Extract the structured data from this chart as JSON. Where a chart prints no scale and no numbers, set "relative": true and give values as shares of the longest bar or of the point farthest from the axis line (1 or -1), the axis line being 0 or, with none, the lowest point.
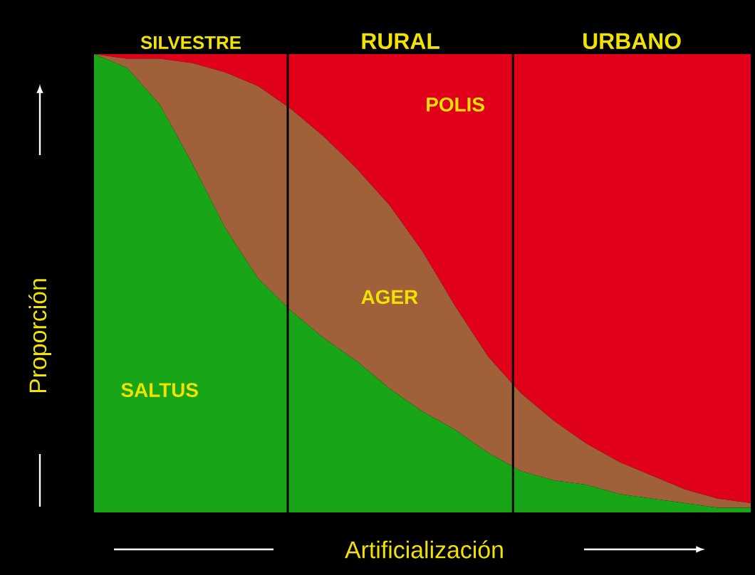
{
  "chart_data": {
    "type": "area",
    "stacked": true,
    "relative": true,
    "xlabel": "Artificialización",
    "ylabel": "Proporción",
    "categories": [
      null,
      null,
      null,
      null,
      null,
      null,
      null,
      null,
      null,
      null,
      null,
      null,
      null,
      null,
      null,
      null,
      null,
      null,
      null,
      null,
      null
    ],
    "series": [
      {
        "name": "SALTUS",
        "color": "#18a518",
        "values": [
          1,
          0.97,
          0.89,
          0.76,
          0.62,
          0.51,
          0.44,
          0.38,
          0.33,
          0.27,
          0.22,
          0.18,
          0.13,
          0.09,
          0.07,
          0.06,
          0.04,
          0.03,
          0.02,
          0.01,
          0.01
        ]
      },
      {
        "name": "AGER",
        "color": "#a0603a",
        "values": [
          0,
          0.02,
          0.1,
          0.22,
          0.34,
          0.42,
          0.44,
          0.44,
          0.42,
          0.4,
          0.35,
          0.27,
          0.21,
          0.17,
          0.13,
          0.09,
          0.07,
          0.05,
          0.03,
          0.02,
          0.01
        ]
      },
      {
        "name": "POLIS",
        "color": "#e0001a",
        "values": [
          0,
          0.01,
          0.01,
          0.02,
          0.04,
          0.07,
          0.12,
          0.18,
          0.25,
          0.33,
          0.43,
          0.55,
          0.66,
          0.74,
          0.8,
          0.85,
          0.89,
          0.92,
          0.95,
          0.97,
          0.98
        ]
      }
    ],
    "annotations": [
      "SILVESTRE",
      "RURAL",
      "URBANO"
    ]
  }
}
